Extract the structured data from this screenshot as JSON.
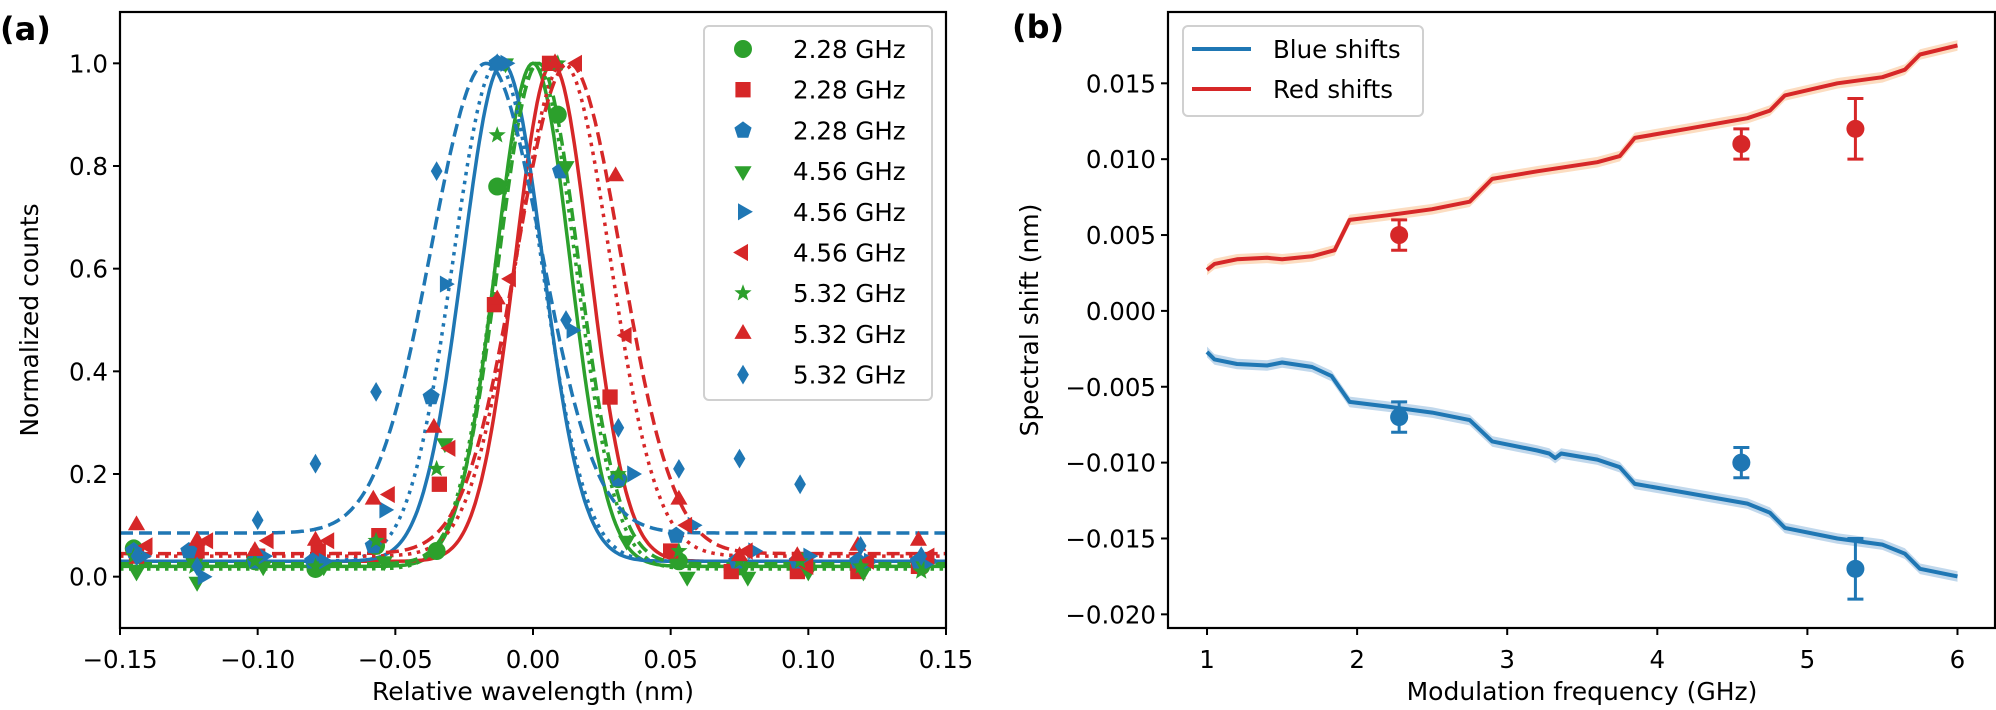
{
  "chart_data": [
    {
      "panel_label": "(a)",
      "type": "scatter",
      "xlabel": "Relative wavelength (nm)",
      "ylabel": "Normalized counts",
      "xlim": [
        -0.15,
        0.15
      ],
      "ylim": [
        -0.1,
        1.1
      ],
      "xticks": [
        -0.15,
        -0.1,
        -0.05,
        0.0,
        0.05,
        0.1,
        0.15
      ],
      "xtick_labels": [
        "−0.15",
        "−0.10",
        "−0.05",
        "0.00",
        "0.05",
        "0.10",
        "0.15"
      ],
      "yticks": [
        0.0,
        0.2,
        0.4,
        0.6,
        0.8,
        1.0
      ],
      "ytick_labels": [
        "0.0",
        "0.2",
        "0.4",
        "0.6",
        "0.8",
        "1.0"
      ],
      "grid": false,
      "legend_position": "top-right",
      "fit_model": "gaussian",
      "series": [
        {
          "name": "2.28 GHz",
          "color": "#2ca02c",
          "marker": "circle",
          "linestyle": "solid",
          "fit": {
            "center": 0.0,
            "sigma": 0.0135,
            "offset": 0.02,
            "amplitude": 0.98
          },
          "x": [
            -0.145,
            -0.123,
            -0.101,
            -0.079,
            -0.057,
            -0.035,
            -0.013,
            0.009,
            0.031,
            0.053,
            0.075,
            0.097,
            0.119,
            0.141
          ],
          "y": [
            0.055,
            0.04,
            0.03,
            0.015,
            0.06,
            0.05,
            0.76,
            0.9,
            0.19,
            0.03,
            0.02,
            0.03,
            0.02,
            0.02
          ]
        },
        {
          "name": "2.28 GHz",
          "color": "#d62728",
          "marker": "square",
          "linestyle": "solid",
          "fit": {
            "center": 0.007,
            "sigma": 0.0135,
            "offset": 0.03,
            "amplitude": 0.97
          },
          "x": [
            -0.144,
            -0.122,
            -0.1,
            -0.078,
            -0.056,
            -0.034,
            -0.014,
            0.006,
            0.028,
            0.05,
            0.072,
            0.096,
            0.118,
            0.14
          ],
          "y": [
            0.04,
            0.05,
            0.04,
            0.05,
            0.08,
            0.18,
            0.53,
            1.0,
            0.35,
            0.05,
            0.01,
            0.01,
            0.01,
            0.02
          ]
        },
        {
          "name": "2.28 GHz",
          "color": "#1f77b4",
          "marker": "pentagon",
          "linestyle": "solid",
          "fit": {
            "center": -0.011,
            "sigma": 0.0145,
            "offset": 0.03,
            "amplitude": 0.97
          },
          "x": [
            -0.145,
            -0.125,
            -0.101,
            -0.08,
            -0.058,
            -0.037,
            -0.013,
            0.01,
            0.031,
            0.052,
            0.074,
            0.096,
            0.118,
            0.14
          ],
          "y": [
            0.05,
            0.05,
            0.03,
            0.03,
            0.06,
            0.35,
            1.0,
            0.79,
            0.19,
            0.08,
            0.03,
            0.03,
            0.03,
            0.03
          ]
        },
        {
          "name": "4.56 GHz",
          "color": "#2ca02c",
          "marker": "triangle-down",
          "linestyle": "dotted",
          "fit": {
            "center": 0.001,
            "sigma": 0.0145,
            "offset": 0.015,
            "amplitude": 0.985
          },
          "x": [
            -0.144,
            -0.122,
            -0.098,
            -0.076,
            -0.054,
            -0.032,
            -0.01,
            0.012,
            0.034,
            0.056,
            0.078,
            0.1,
            0.12,
            0.142
          ],
          "y": [
            0.01,
            -0.01,
            0.02,
            0.02,
            0.03,
            0.26,
            1.0,
            0.8,
            0.07,
            0.0,
            0.0,
            0.01,
            0.01,
            0.02
          ]
        },
        {
          "name": "4.56 GHz",
          "color": "#1f77b4",
          "marker": "triangle-right",
          "linestyle": "dotted",
          "fit": {
            "center": -0.013,
            "sigma": 0.016,
            "offset": 0.03,
            "amplitude": 0.97
          },
          "x": [
            -0.142,
            -0.12,
            -0.098,
            -0.076,
            -0.054,
            -0.032,
            -0.01,
            0.014,
            0.036,
            0.058,
            0.08,
            0.1,
            0.122,
            0.144
          ],
          "y": [
            0.04,
            0.0,
            0.04,
            0.03,
            0.13,
            0.57,
            1.0,
            0.48,
            0.2,
            0.1,
            0.05,
            0.04,
            0.03,
            0.03
          ]
        },
        {
          "name": "4.56 GHz",
          "color": "#d62728",
          "marker": "triangle-left",
          "linestyle": "dotted",
          "fit": {
            "center": 0.011,
            "sigma": 0.017,
            "offset": 0.04,
            "amplitude": 0.96
          },
          "x": [
            -0.14,
            -0.118,
            -0.096,
            -0.074,
            -0.052,
            -0.03,
            -0.008,
            0.016,
            0.034,
            0.056,
            0.078,
            0.1,
            0.122,
            0.144
          ],
          "y": [
            0.06,
            0.07,
            0.07,
            0.07,
            0.16,
            0.25,
            0.58,
            1.0,
            0.47,
            0.1,
            0.05,
            0.02,
            0.03,
            0.04
          ]
        },
        {
          "name": "5.32 GHz",
          "color": "#2ca02c",
          "marker": "star",
          "linestyle": "dashed",
          "fit": {
            "center": 0.002,
            "sigma": 0.0145,
            "offset": 0.025,
            "amplitude": 0.975
          },
          "x": [
            -0.145,
            -0.123,
            -0.101,
            -0.079,
            -0.057,
            -0.035,
            -0.013,
            0.009,
            0.031,
            0.053,
            0.075,
            0.097,
            0.119,
            0.141
          ],
          "y": [
            0.04,
            0.02,
            0.03,
            0.02,
            0.07,
            0.21,
            0.86,
            1.0,
            0.2,
            0.05,
            0.03,
            0.03,
            0.02,
            0.01
          ]
        },
        {
          "name": "5.32 GHz",
          "color": "#d62728",
          "marker": "triangle-up",
          "linestyle": "dashed",
          "fit": {
            "center": 0.013,
            "sigma": 0.019,
            "offset": 0.045,
            "amplitude": 0.955
          },
          "x": [
            -0.144,
            -0.122,
            -0.101,
            -0.079,
            -0.058,
            -0.036,
            -0.013,
            0.008,
            0.03,
            0.053,
            0.075,
            0.096,
            0.118,
            0.14
          ],
          "y": [
            0.1,
            0.07,
            0.05,
            0.07,
            0.15,
            0.29,
            0.54,
            1.0,
            0.78,
            0.15,
            0.04,
            0.04,
            0.06,
            0.07
          ]
        },
        {
          "name": "5.32 GHz",
          "color": "#1f77b4",
          "marker": "diamond",
          "linestyle": "dashed",
          "fit": {
            "center": -0.017,
            "sigma": 0.02,
            "offset": 0.085,
            "amplitude": 0.915
          },
          "x": [
            -0.144,
            -0.122,
            -0.1,
            -0.079,
            -0.057,
            -0.035,
            -0.013,
            0.012,
            0.031,
            0.053,
            0.075,
            0.097,
            0.119,
            0.141
          ],
          "y": [
            0.04,
            0.02,
            0.11,
            0.22,
            0.36,
            0.79,
            1.0,
            0.5,
            0.29,
            0.21,
            0.23,
            0.18,
            0.06,
            0.04
          ]
        }
      ]
    },
    {
      "panel_label": "(b)",
      "type": "line",
      "xlabel": "Modulation frequency (GHz)",
      "ylabel": "Spectral shift (nm)",
      "xlim": [
        0.74,
        6.25
      ],
      "ylim": [
        -0.0209,
        0.0197
      ],
      "xticks": [
        1,
        2,
        3,
        4,
        5,
        6
      ],
      "xtick_labels": [
        "1",
        "2",
        "3",
        "4",
        "5",
        "6"
      ],
      "yticks": [
        -0.02,
        -0.015,
        -0.01,
        -0.005,
        0.0,
        0.005,
        0.01,
        0.015
      ],
      "ytick_labels": [
        "−0.020",
        "−0.015",
        "−0.010",
        "−0.005",
        "0.000",
        "0.005",
        "0.010",
        "0.015"
      ],
      "grid": false,
      "legend_position": "top-left",
      "series": [
        {
          "name": "Blue shifts",
          "color": "#1f77b4",
          "band_color": "#a6c8e4",
          "x": [
            1.0,
            1.05,
            1.2,
            1.4,
            1.5,
            1.7,
            1.83,
            1.95,
            2.2,
            2.5,
            2.75,
            2.9,
            3.2,
            3.28,
            3.32,
            3.36,
            3.6,
            3.75,
            3.85,
            4.2,
            4.6,
            4.75,
            4.85,
            5.2,
            5.5,
            5.65,
            5.75,
            6.0
          ],
          "y": [
            -0.0027,
            -0.0032,
            -0.0035,
            -0.0036,
            -0.0034,
            -0.0037,
            -0.0043,
            -0.006,
            -0.0063,
            -0.0067,
            -0.0072,
            -0.0086,
            -0.0092,
            -0.0094,
            -0.0097,
            -0.0094,
            -0.0098,
            -0.0103,
            -0.0114,
            -0.012,
            -0.0127,
            -0.0133,
            -0.0143,
            -0.015,
            -0.0154,
            -0.016,
            -0.017,
            -0.0175
          ],
          "measured": {
            "x": [
              2.28,
              4.56,
              5.32
            ],
            "y": [
              -0.007,
              -0.01,
              -0.017
            ],
            "err": [
              0.001,
              0.001,
              0.002
            ]
          }
        },
        {
          "name": "Red shifts",
          "color": "#d62728",
          "band_color": "#fbcfa6",
          "x": [
            1.0,
            1.05,
            1.2,
            1.4,
            1.5,
            1.7,
            1.85,
            1.95,
            2.2,
            2.5,
            2.75,
            2.9,
            3.2,
            3.6,
            3.75,
            3.85,
            4.2,
            4.6,
            4.75,
            4.85,
            5.2,
            5.5,
            5.65,
            5.75,
            6.0
          ],
          "y": [
            0.0027,
            0.0031,
            0.0034,
            0.0035,
            0.0034,
            0.0036,
            0.004,
            0.006,
            0.0063,
            0.0067,
            0.0072,
            0.0087,
            0.0092,
            0.0098,
            0.0102,
            0.0114,
            0.012,
            0.0127,
            0.0132,
            0.0142,
            0.015,
            0.0154,
            0.0159,
            0.0169,
            0.0175
          ],
          "measured": {
            "x": [
              2.28,
              4.56,
              5.32
            ],
            "y": [
              0.005,
              0.011,
              0.012
            ],
            "err": [
              0.001,
              0.001,
              0.002
            ]
          }
        }
      ]
    }
  ]
}
